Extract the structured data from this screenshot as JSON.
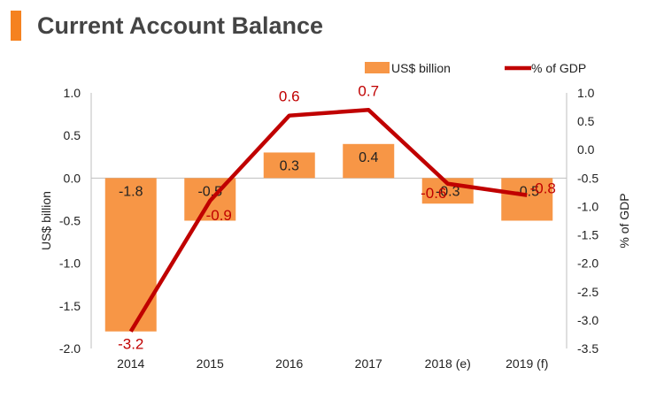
{
  "chart_data": {
    "type": "bar",
    "title": "Current Account Balance",
    "categories": [
      "2014",
      "2015",
      "2016",
      "2017",
      "2018 (e)",
      "2019 (f)"
    ],
    "series": [
      {
        "name": "US$ billion",
        "kind": "bar",
        "axis": "left",
        "values": [
          -1.8,
          -0.5,
          0.3,
          0.4,
          -0.3,
          -0.5
        ],
        "labels": [
          "-1.8",
          "-0.5",
          "0.3",
          "0.4",
          "-0.3",
          "-0.5"
        ]
      },
      {
        "name": "% of GDP",
        "kind": "line",
        "axis": "right",
        "values": [
          -3.2,
          -0.9,
          0.6,
          0.7,
          -0.6,
          -0.8
        ],
        "labels": [
          "-3.2",
          "-0.9",
          "0.6",
          "0.7",
          "-0.6",
          "-0.8"
        ]
      }
    ],
    "ylabel": "US$ billion",
    "y2label": "% of GDP",
    "ylim": [
      -2.0,
      1.0
    ],
    "y2lim": [
      -3.5,
      1.0
    ],
    "yticks": [
      "1.0",
      "0.5",
      "0.0",
      "-0.5",
      "-1.0",
      "-1.5",
      "-2.0"
    ],
    "y2ticks": [
      "1.0",
      "0.5",
      "0.0",
      "-0.5",
      "-1.0",
      "-1.5",
      "-2.0",
      "-2.5",
      "-3.0",
      "-3.5"
    ],
    "legend_position": "top-right",
    "grid": false,
    "colors": {
      "bar": "#f79646",
      "line": "#c00000",
      "bar_label": "#222222",
      "line_label": "#c00000",
      "axis": "#bfbfbf",
      "accent": "#f58220"
    }
  }
}
